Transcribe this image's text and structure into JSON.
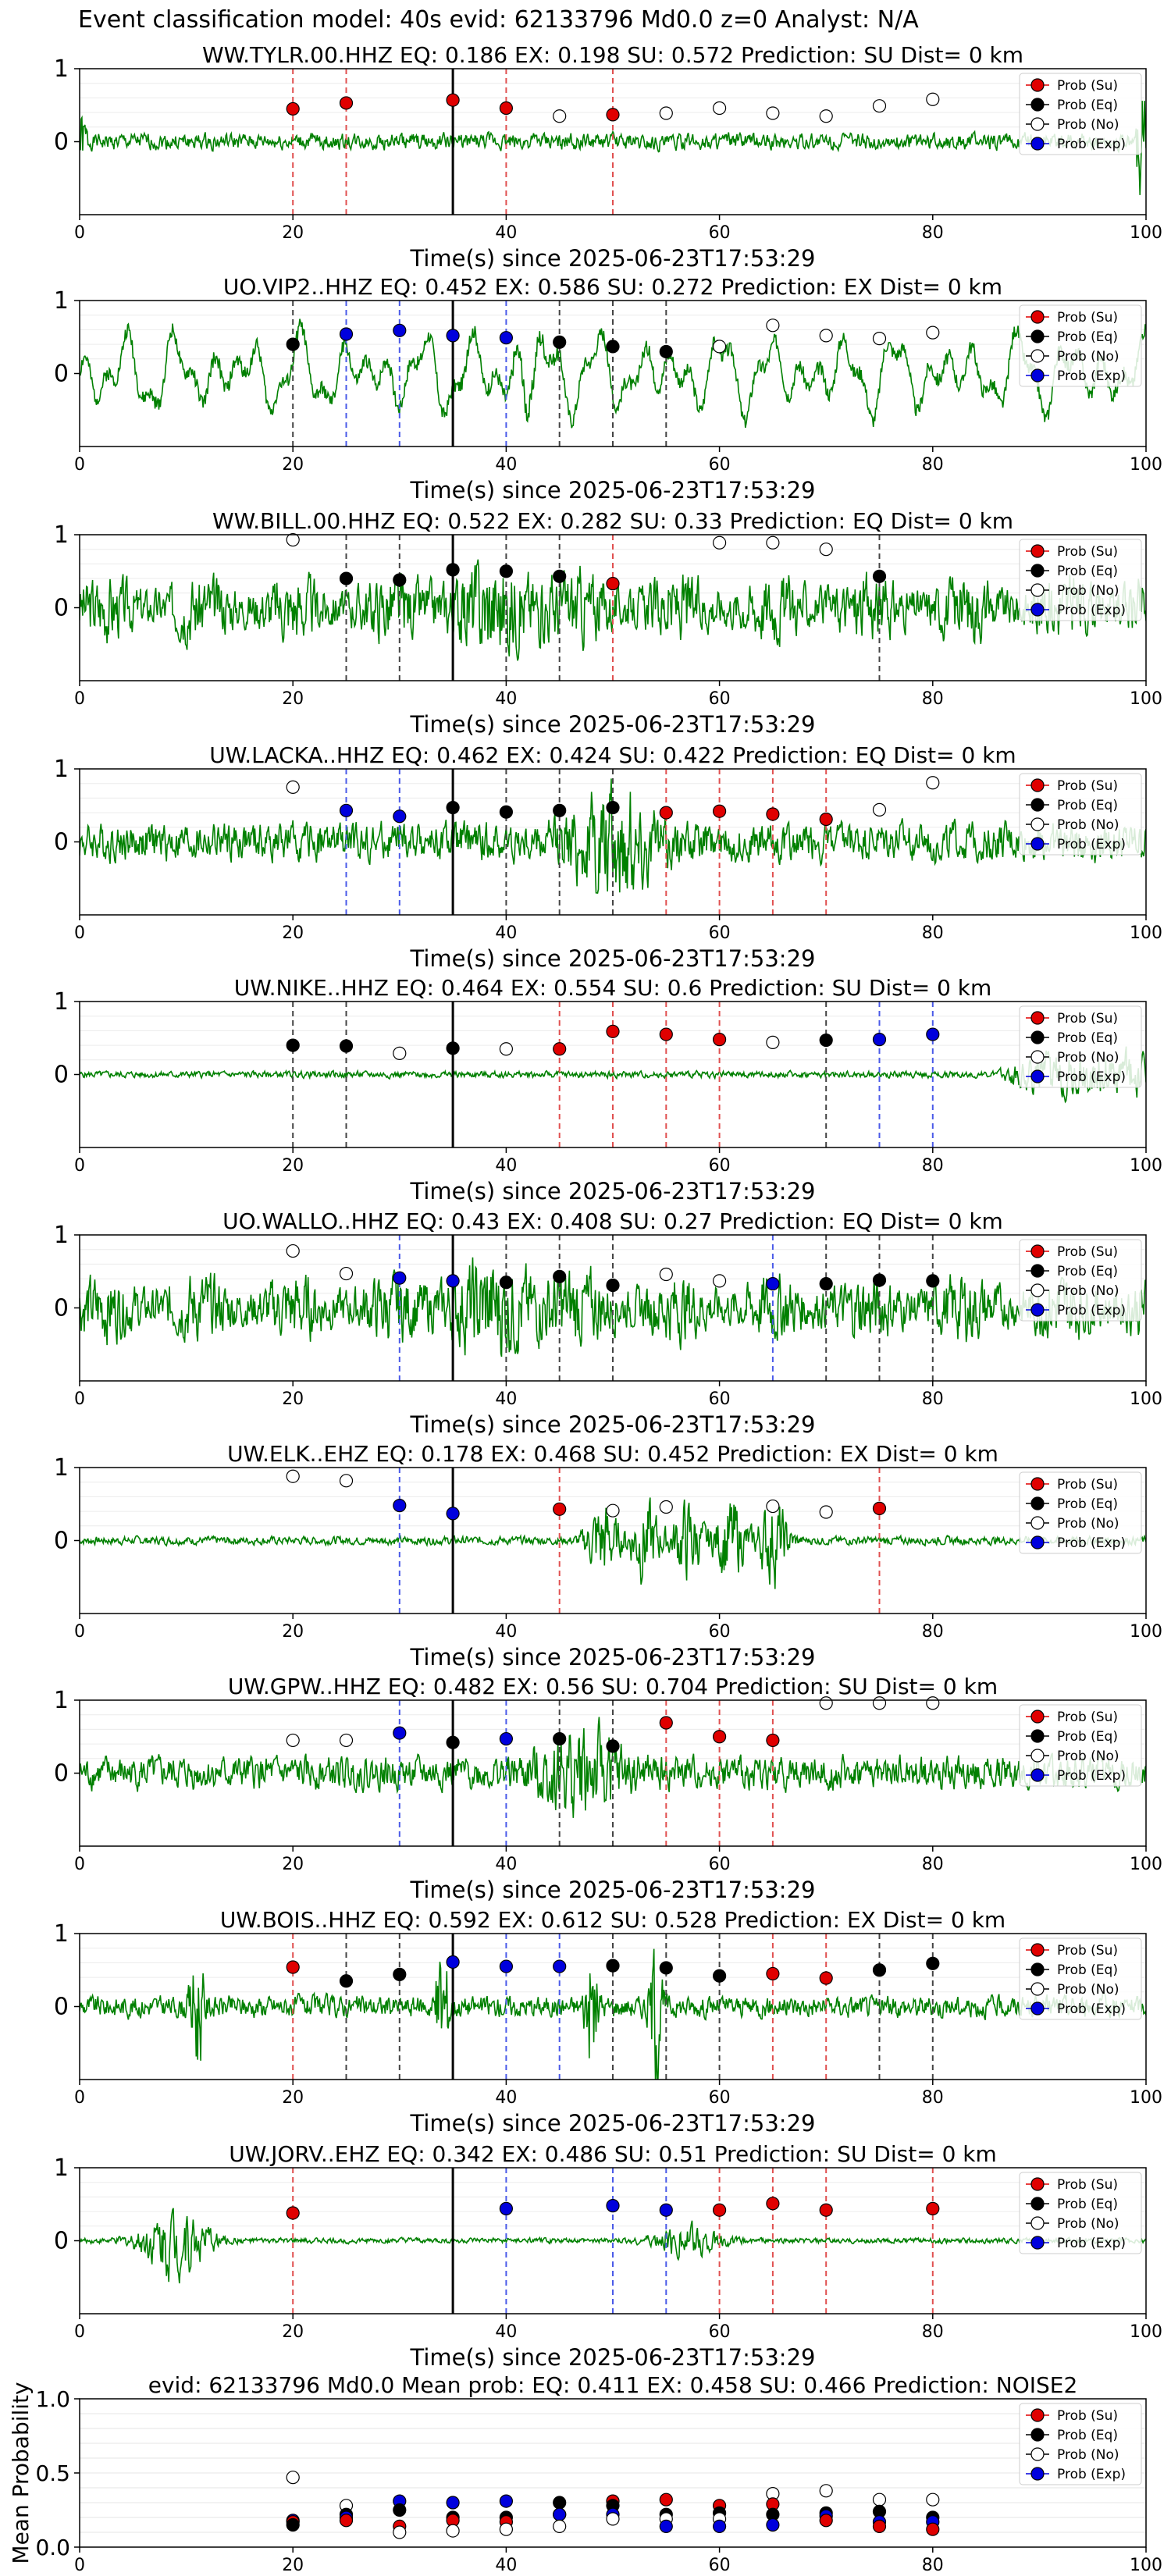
{
  "suptitle": "Event classification model: 40s evid: 62133796 Md0.0 z=0 Analyst: N/A",
  "legend": [
    "Prob (Su)",
    "Prob (Eq)",
    "Prob (No)",
    "Prob (Exp)"
  ],
  "colors": {
    "su": "#e00000",
    "eq": "#000000",
    "no": "#ffffff",
    "exp": "#0000dd",
    "wave": "#008000",
    "vline": "#000000"
  },
  "xlabel": "Time(s) since 2025-06-23T17:53:29",
  "mean_ylabel": "Mean Probability",
  "x_ticks": [
    0,
    20,
    40,
    60,
    80,
    100
  ],
  "y_ticks": [
    0,
    1
  ],
  "mean_y_ticks": [
    "0.0",
    "0.5",
    "1.0"
  ],
  "chart_data": [
    {
      "type": "scatter",
      "title": "WW.TYLR.00.HHZ   EQ: 0.186  EX: 0.198  SU: 0.572   Prediction: SU    Dist= 0 km",
      "xlim": [
        0,
        100
      ],
      "ylim": [
        -1,
        1
      ],
      "event_line": 35,
      "wave": {
        "amp": 0.15,
        "mode": "steady",
        "seed": 1
      },
      "points": [
        [
          20,
          0.45,
          "su"
        ],
        [
          25,
          0.53,
          "su"
        ],
        [
          35,
          0.57,
          "su"
        ],
        [
          40,
          0.46,
          "su"
        ],
        [
          45,
          0.35,
          "no"
        ],
        [
          50,
          0.37,
          "su"
        ],
        [
          55,
          0.39,
          "no"
        ],
        [
          60,
          0.46,
          "no"
        ],
        [
          65,
          0.39,
          "no"
        ],
        [
          70,
          0.35,
          "no"
        ],
        [
          75,
          0.49,
          "no"
        ],
        [
          80,
          0.58,
          "no"
        ]
      ]
    },
    {
      "type": "scatter",
      "title": "UO.VIP2..HHZ   EQ: 0.452  EX: 0.586  SU: 0.272   Prediction: EX    Dist= 0 km",
      "xlim": [
        0,
        100
      ],
      "ylim": [
        -1,
        1
      ],
      "event_line": 35,
      "wave": {
        "amp": 0.45,
        "mode": "slow",
        "seed": 2
      },
      "points": [
        [
          20,
          0.4,
          "eq"
        ],
        [
          25,
          0.54,
          "exp"
        ],
        [
          30,
          0.59,
          "exp"
        ],
        [
          35,
          0.52,
          "exp"
        ],
        [
          40,
          0.49,
          "exp"
        ],
        [
          45,
          0.43,
          "eq"
        ],
        [
          50,
          0.37,
          "eq"
        ],
        [
          55,
          0.3,
          "eq"
        ],
        [
          60,
          0.37,
          "no"
        ],
        [
          65,
          0.66,
          "no"
        ],
        [
          70,
          0.52,
          "no"
        ],
        [
          75,
          0.48,
          "no"
        ],
        [
          80,
          0.56,
          "no"
        ]
      ]
    },
    {
      "type": "scatter",
      "title": "WW.BILL.00.HHZ   EQ: 0.522  EX: 0.282  SU: 0.33    Prediction: EQ    Dist= 0 km",
      "xlim": [
        0,
        100
      ],
      "ylim": [
        -1,
        1
      ],
      "event_line": 35,
      "wave": {
        "amp": 0.5,
        "mode": "noise",
        "seed": 3
      },
      "points": [
        [
          20,
          0.93,
          "no"
        ],
        [
          25,
          0.4,
          "eq"
        ],
        [
          30,
          0.38,
          "eq"
        ],
        [
          35,
          0.52,
          "eq"
        ],
        [
          40,
          0.5,
          "eq"
        ],
        [
          45,
          0.43,
          "eq"
        ],
        [
          50,
          0.33,
          "su"
        ],
        [
          60,
          0.89,
          "no"
        ],
        [
          65,
          0.89,
          "no"
        ],
        [
          70,
          0.8,
          "no"
        ],
        [
          75,
          0.43,
          "eq"
        ]
      ]
    },
    {
      "type": "scatter",
      "title": "UW.LACKA..HHZ   EQ: 0.462  EX: 0.424  SU: 0.422   Prediction: EQ    Dist= 0 km",
      "xlim": [
        0,
        100
      ],
      "ylim": [
        -1,
        1
      ],
      "event_line": 35,
      "wave": {
        "amp": 0.35,
        "mode": "burst",
        "center": 50,
        "seed": 4
      },
      "points": [
        [
          20,
          0.75,
          "no"
        ],
        [
          25,
          0.43,
          "exp"
        ],
        [
          30,
          0.35,
          "exp"
        ],
        [
          35,
          0.47,
          "eq"
        ],
        [
          40,
          0.41,
          "eq"
        ],
        [
          45,
          0.43,
          "eq"
        ],
        [
          50,
          0.47,
          "eq"
        ],
        [
          55,
          0.4,
          "su"
        ],
        [
          60,
          0.42,
          "su"
        ],
        [
          65,
          0.38,
          "su"
        ],
        [
          70,
          0.31,
          "su"
        ],
        [
          75,
          0.44,
          "no"
        ],
        [
          80,
          0.81,
          "no"
        ]
      ]
    },
    {
      "type": "scatter",
      "title": "UW.NIKE..HHZ   EQ: 0.464  EX: 0.554  SU: 0.6   Prediction: SU    Dist= 0 km",
      "xlim": [
        0,
        100
      ],
      "ylim": [
        -1,
        1
      ],
      "event_line": 35,
      "wave": {
        "amp": 0.06,
        "mode": "late",
        "seed": 5
      },
      "points": [
        [
          20,
          0.4,
          "eq"
        ],
        [
          25,
          0.39,
          "eq"
        ],
        [
          30,
          0.29,
          "no"
        ],
        [
          35,
          0.36,
          "eq"
        ],
        [
          40,
          0.35,
          "no"
        ],
        [
          45,
          0.35,
          "su"
        ],
        [
          50,
          0.59,
          "su"
        ],
        [
          55,
          0.55,
          "su"
        ],
        [
          60,
          0.48,
          "su"
        ],
        [
          65,
          0.44,
          "no"
        ],
        [
          70,
          0.47,
          "eq"
        ],
        [
          75,
          0.48,
          "exp"
        ],
        [
          80,
          0.55,
          "exp"
        ]
      ]
    },
    {
      "type": "scatter",
      "title": "UO.WALLO..HHZ   EQ: 0.43  EX: 0.408  SU: 0.27   Prediction: EQ    Dist= 0 km",
      "xlim": [
        0,
        100
      ],
      "ylim": [
        -1,
        1
      ],
      "event_line": 35,
      "wave": {
        "amp": 0.5,
        "mode": "noise",
        "seed": 6
      },
      "points": [
        [
          20,
          0.78,
          "no"
        ],
        [
          25,
          0.47,
          "no"
        ],
        [
          30,
          0.41,
          "exp"
        ],
        [
          35,
          0.37,
          "exp"
        ],
        [
          40,
          0.35,
          "eq"
        ],
        [
          45,
          0.43,
          "eq"
        ],
        [
          50,
          0.31,
          "eq"
        ],
        [
          55,
          0.46,
          "no"
        ],
        [
          60,
          0.37,
          "no"
        ],
        [
          65,
          0.33,
          "exp"
        ],
        [
          70,
          0.33,
          "eq"
        ],
        [
          75,
          0.38,
          "eq"
        ],
        [
          80,
          0.37,
          "eq"
        ]
      ]
    },
    {
      "type": "scatter",
      "title": "UW.ELK..EHZ   EQ: 0.178  EX: 0.468  SU: 0.452   Prediction: EX    Dist= 0 km",
      "xlim": [
        0,
        100
      ],
      "ylim": [
        -1,
        1
      ],
      "event_line": 35,
      "wave": {
        "amp": 0.15,
        "mode": "bursts",
        "centers": [
          49,
          53,
          57,
          61,
          65
        ],
        "seed": 7
      },
      "points": [
        [
          20,
          0.88,
          "no"
        ],
        [
          25,
          0.82,
          "no"
        ],
        [
          30,
          0.48,
          "exp"
        ],
        [
          35,
          0.37,
          "exp"
        ],
        [
          45,
          0.43,
          "su"
        ],
        [
          50,
          0.41,
          "no"
        ],
        [
          55,
          0.46,
          "no"
        ],
        [
          65,
          0.47,
          "no"
        ],
        [
          70,
          0.39,
          "no"
        ],
        [
          75,
          0.44,
          "su"
        ]
      ]
    },
    {
      "type": "scatter",
      "title": "UW.GPW..HHZ   EQ: 0.482  EX: 0.56  SU: 0.704   Prediction: SU    Dist= 0 km",
      "xlim": [
        0,
        100
      ],
      "ylim": [
        -1,
        1
      ],
      "event_line": 35,
      "wave": {
        "amp": 0.3,
        "mode": "burst",
        "center": 47,
        "seed": 8
      },
      "points": [
        [
          20,
          0.45,
          "no"
        ],
        [
          25,
          0.45,
          "no"
        ],
        [
          30,
          0.55,
          "exp"
        ],
        [
          35,
          0.42,
          "eq"
        ],
        [
          40,
          0.47,
          "exp"
        ],
        [
          45,
          0.47,
          "eq"
        ],
        [
          50,
          0.37,
          "eq"
        ],
        [
          55,
          0.69,
          "su"
        ],
        [
          60,
          0.5,
          "su"
        ],
        [
          65,
          0.45,
          "su"
        ],
        [
          70,
          0.96,
          "no"
        ],
        [
          75,
          0.96,
          "no"
        ],
        [
          80,
          0.96,
          "no"
        ]
      ]
    },
    {
      "type": "scatter",
      "title": "UW.BOIS..HHZ   EQ: 0.592  EX: 0.612  SU: 0.528   Prediction: EX    Dist= 0 km",
      "xlim": [
        0,
        100
      ],
      "ylim": [
        -1,
        1
      ],
      "event_line": 35,
      "wave": {
        "amp": 0.2,
        "mode": "spikes",
        "centers": [
          11,
          34,
          48,
          54
        ],
        "seed": 9
      },
      "points": [
        [
          20,
          0.54,
          "su"
        ],
        [
          25,
          0.35,
          "eq"
        ],
        [
          30,
          0.44,
          "eq"
        ],
        [
          35,
          0.61,
          "exp"
        ],
        [
          40,
          0.55,
          "exp"
        ],
        [
          45,
          0.55,
          "exp"
        ],
        [
          50,
          0.56,
          "eq"
        ],
        [
          55,
          0.53,
          "eq"
        ],
        [
          60,
          0.42,
          "eq"
        ],
        [
          65,
          0.45,
          "su"
        ],
        [
          70,
          0.39,
          "su"
        ],
        [
          75,
          0.5,
          "eq"
        ],
        [
          80,
          0.59,
          "eq"
        ]
      ]
    },
    {
      "type": "scatter",
      "title": "UW.JORV..EHZ   EQ: 0.342  EX: 0.486  SU: 0.51    Prediction: SU    Dist= 0 km",
      "xlim": [
        0,
        100
      ],
      "ylim": [
        -1,
        1
      ],
      "event_line": 35,
      "wave": {
        "amp": 0.08,
        "mode": "early",
        "centers": [
          9,
          57
        ],
        "seed": 10
      },
      "points": [
        [
          20,
          0.38,
          "su"
        ],
        [
          40,
          0.44,
          "exp"
        ],
        [
          50,
          0.48,
          "exp"
        ],
        [
          55,
          0.42,
          "exp"
        ],
        [
          60,
          0.42,
          "su"
        ],
        [
          65,
          0.51,
          "su"
        ],
        [
          70,
          0.42,
          "su"
        ],
        [
          80,
          0.44,
          "su"
        ]
      ]
    },
    {
      "type": "scatter",
      "title": "evid: 62133796  Md0.0   Mean prob:   EQ: 0.411  EX: 0.458  SU: 0.466   Prediction: NOISE2",
      "xlim": [
        0,
        100
      ],
      "ylim": [
        0,
        1
      ],
      "points": [
        [
          20,
          0.47,
          "no"
        ],
        [
          20,
          0.18,
          "exp"
        ],
        [
          20,
          0.17,
          "su"
        ],
        [
          20,
          0.15,
          "eq"
        ],
        [
          25,
          0.28,
          "no"
        ],
        [
          25,
          0.22,
          "eq"
        ],
        [
          25,
          0.2,
          "exp"
        ],
        [
          25,
          0.18,
          "su"
        ],
        [
          30,
          0.31,
          "exp"
        ],
        [
          30,
          0.25,
          "eq"
        ],
        [
          30,
          0.14,
          "su"
        ],
        [
          30,
          0.1,
          "no"
        ],
        [
          35,
          0.3,
          "exp"
        ],
        [
          35,
          0.2,
          "eq"
        ],
        [
          35,
          0.18,
          "su"
        ],
        [
          35,
          0.11,
          "no"
        ],
        [
          40,
          0.31,
          "exp"
        ],
        [
          40,
          0.2,
          "eq"
        ],
        [
          40,
          0.17,
          "su"
        ],
        [
          40,
          0.12,
          "no"
        ],
        [
          45,
          0.3,
          "eq"
        ],
        [
          45,
          0.22,
          "su"
        ],
        [
          45,
          0.22,
          "exp"
        ],
        [
          45,
          0.14,
          "no"
        ],
        [
          50,
          0.31,
          "su"
        ],
        [
          50,
          0.28,
          "eq"
        ],
        [
          50,
          0.22,
          "exp"
        ],
        [
          50,
          0.19,
          "no"
        ],
        [
          55,
          0.32,
          "su"
        ],
        [
          55,
          0.22,
          "eq"
        ],
        [
          55,
          0.19,
          "no"
        ],
        [
          55,
          0.14,
          "exp"
        ],
        [
          60,
          0.28,
          "su"
        ],
        [
          60,
          0.23,
          "eq"
        ],
        [
          60,
          0.19,
          "no"
        ],
        [
          60,
          0.14,
          "exp"
        ],
        [
          65,
          0.36,
          "no"
        ],
        [
          65,
          0.29,
          "su"
        ],
        [
          65,
          0.22,
          "eq"
        ],
        [
          65,
          0.15,
          "exp"
        ],
        [
          70,
          0.38,
          "no"
        ],
        [
          70,
          0.23,
          "eq"
        ],
        [
          70,
          0.21,
          "exp"
        ],
        [
          70,
          0.18,
          "su"
        ],
        [
          75,
          0.32,
          "no"
        ],
        [
          75,
          0.24,
          "eq"
        ],
        [
          75,
          0.17,
          "exp"
        ],
        [
          75,
          0.14,
          "su"
        ],
        [
          80,
          0.32,
          "no"
        ],
        [
          80,
          0.2,
          "eq"
        ],
        [
          80,
          0.17,
          "exp"
        ],
        [
          80,
          0.12,
          "su"
        ]
      ]
    }
  ]
}
